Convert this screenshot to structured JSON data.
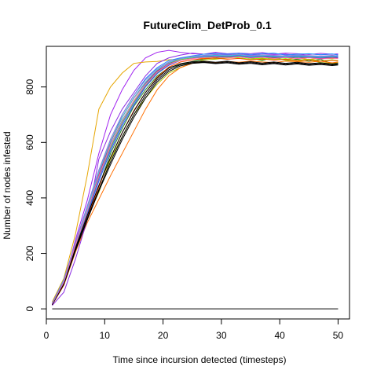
{
  "chart_data": {
    "type": "line",
    "title": "FutureClim_DetProb_0.1",
    "xlabel": "Time since incursion detected (timesteps)",
    "ylabel": "Number of nodes infested",
    "xlim": [
      0,
      51.96
    ],
    "ylim": [
      -36.4,
      946.4
    ],
    "x_ticks": [
      0,
      10,
      20,
      30,
      40,
      50
    ],
    "y_ticks": [
      0,
      200,
      400,
      600,
      800
    ],
    "grid": false,
    "legend": "none",
    "baseline": {
      "x": [
        1,
        50
      ],
      "y": [
        0,
        0
      ],
      "color": "#000000"
    },
    "series": [
      {
        "color": "#A020F0",
        "x": [
          1,
          3,
          5,
          7,
          9,
          11,
          13,
          15,
          17,
          19,
          21,
          23,
          25,
          27,
          29,
          31,
          33,
          35,
          37,
          39,
          41,
          43,
          45,
          47,
          49,
          50
        ],
        "y": [
          20,
          90,
          250,
          390,
          560,
          700,
          790,
          860,
          905,
          925,
          932,
          925,
          920,
          918,
          921,
          916,
          922,
          914,
          920,
          917,
          918,
          914,
          919,
          916,
          918,
          917
        ]
      },
      {
        "color": "#E6A500",
        "x": [
          1,
          3,
          5,
          7,
          9,
          11,
          13,
          15,
          17,
          19,
          21,
          23,
          25,
          27,
          29,
          31,
          33,
          35,
          37,
          39,
          41,
          43,
          45,
          47,
          49,
          50
        ],
        "y": [
          25,
          110,
          270,
          480,
          720,
          800,
          850,
          885,
          890,
          892,
          898,
          900,
          905,
          902,
          906,
          904,
          909,
          905,
          903,
          901,
          900,
          905,
          899,
          904,
          902,
          905
        ]
      },
      {
        "color": "#228B22",
        "x": [
          1,
          3,
          5,
          7,
          9,
          11,
          13,
          15,
          17,
          19,
          21,
          23,
          25,
          27,
          29,
          31,
          33,
          35,
          37,
          39,
          41,
          43,
          45,
          47,
          49,
          50
        ],
        "y": [
          18,
          100,
          230,
          340,
          440,
          560,
          650,
          730,
          790,
          840,
          870,
          880,
          892,
          901,
          905,
          910,
          915,
          905,
          895,
          908,
          896,
          900,
          893,
          900,
          883,
          880
        ]
      },
      {
        "color": "#B0C400",
        "x": [
          1,
          3,
          5,
          7,
          9,
          11,
          13,
          15,
          17,
          19,
          21,
          23,
          25,
          27,
          29,
          31,
          33,
          35,
          37,
          39,
          41,
          43,
          45,
          47,
          49,
          50
        ],
        "y": [
          16,
          95,
          220,
          330,
          420,
          540,
          620,
          700,
          760,
          810,
          850,
          870,
          885,
          898,
          900,
          905,
          910,
          903,
          898,
          905,
          896,
          892,
          898,
          888,
          885,
          888
        ]
      },
      {
        "color": "#FF6E00",
        "x": [
          1,
          3,
          5,
          7,
          9,
          11,
          13,
          15,
          17,
          19,
          21,
          23,
          25,
          27,
          29,
          31,
          33,
          35,
          37,
          39,
          41,
          43,
          45,
          47,
          49,
          50
        ],
        "y": [
          14,
          85,
          205,
          310,
          395,
          480,
          560,
          640,
          720,
          790,
          840,
          870,
          885,
          890,
          888,
          892,
          889,
          893,
          890,
          888,
          893,
          891,
          889,
          893,
          887,
          890
        ]
      },
      {
        "color": "#8B2BE2",
        "x": [
          1,
          3,
          5,
          7,
          9,
          11,
          13,
          15,
          17,
          19,
          21,
          23,
          25,
          27,
          29,
          31,
          33,
          35,
          37,
          39,
          41,
          43,
          45,
          47,
          49,
          50
        ],
        "y": [
          12,
          60,
          180,
          320,
          540,
          640,
          720,
          780,
          840,
          885,
          905,
          915,
          922,
          918,
          925,
          920,
          922,
          920,
          924,
          918,
          922,
          920,
          917,
          921,
          918,
          919
        ]
      },
      {
        "color": "#1E90FF",
        "x": [
          1,
          3,
          5,
          7,
          9,
          11,
          13,
          15,
          17,
          19,
          21,
          23,
          25,
          27,
          29,
          31,
          33,
          35,
          37,
          39,
          41,
          43,
          45,
          47,
          49,
          50
        ],
        "y": [
          20,
          105,
          240,
          370,
          500,
          600,
          700,
          770,
          830,
          870,
          895,
          905,
          912,
          918,
          920,
          918,
          921,
          917,
          920,
          922,
          915,
          918,
          920,
          916,
          919,
          915
        ]
      },
      {
        "color": "#00CED1",
        "x": [
          1,
          3,
          5,
          7,
          9,
          11,
          13,
          15,
          17,
          19,
          21,
          23,
          25,
          27,
          29,
          31,
          33,
          35,
          37,
          39,
          41,
          43,
          45,
          47,
          49,
          50
        ],
        "y": [
          19,
          100,
          235,
          350,
          480,
          590,
          680,
          750,
          810,
          860,
          890,
          902,
          908,
          911,
          914,
          912,
          915,
          910,
          913,
          911,
          909,
          912,
          910,
          908,
          911,
          910
        ]
      },
      {
        "color": "#FF1493",
        "x": [
          1,
          3,
          5,
          7,
          9,
          11,
          13,
          15,
          17,
          19,
          21,
          23,
          25,
          27,
          29,
          31,
          33,
          35,
          37,
          39,
          41,
          43,
          45,
          47,
          49,
          50
        ],
        "y": [
          17,
          95,
          225,
          345,
          470,
          580,
          670,
          745,
          805,
          850,
          880,
          896,
          904,
          910,
          908,
          912,
          910,
          907,
          911,
          909,
          906,
          910,
          907,
          909,
          906,
          908
        ]
      },
      {
        "color": "#00B060",
        "x": [
          1,
          3,
          5,
          7,
          9,
          11,
          13,
          15,
          17,
          19,
          21,
          23,
          25,
          27,
          29,
          31,
          33,
          35,
          37,
          39,
          41,
          43,
          45,
          47,
          49,
          50
        ],
        "y": [
          18,
          98,
          230,
          350,
          475,
          585,
          675,
          748,
          808,
          855,
          885,
          900,
          906,
          908,
          910,
          907,
          911,
          906,
          909,
          905,
          908,
          904,
          907,
          903,
          906,
          905
        ]
      },
      {
        "color": "#2F4FFF",
        "x": [
          1,
          3,
          5,
          7,
          9,
          11,
          13,
          15,
          17,
          19,
          21,
          23,
          25,
          27,
          29,
          31,
          33,
          35,
          37,
          39,
          41,
          43,
          45,
          47,
          49,
          50
        ],
        "y": [
          16,
          90,
          220,
          340,
          460,
          570,
          660,
          735,
          800,
          848,
          878,
          896,
          905,
          910,
          913,
          910,
          914,
          909,
          912,
          910,
          908,
          911,
          909,
          907,
          910,
          908
        ]
      },
      {
        "color": "#C71585",
        "x": [
          1,
          3,
          5,
          7,
          9,
          11,
          13,
          15,
          17,
          19,
          21,
          23,
          25,
          27,
          29,
          31,
          33,
          35,
          37,
          39,
          41,
          43,
          45,
          47,
          49,
          50
        ],
        "y": [
          17,
          92,
          228,
          352,
          485,
          600,
          690,
          760,
          815,
          858,
          884,
          898,
          905,
          907,
          909,
          906,
          910,
          905,
          908,
          904,
          907,
          903,
          906,
          902,
          905,
          904
        ]
      },
      {
        "color": "#40E0D0",
        "x": [
          1,
          3,
          5,
          7,
          9,
          11,
          13,
          15,
          17,
          19,
          21,
          23,
          25,
          27,
          29,
          31,
          33,
          35,
          37,
          39,
          41,
          43,
          45,
          47,
          49,
          50
        ],
        "y": [
          19,
          102,
          238,
          360,
          492,
          605,
          692,
          762,
          818,
          862,
          888,
          901,
          907,
          912,
          915,
          913,
          916,
          911,
          914,
          912,
          910,
          913,
          911,
          909,
          912,
          911
        ]
      },
      {
        "color": "#7FFF00",
        "x": [
          1,
          3,
          5,
          7,
          9,
          11,
          13,
          15,
          17,
          19,
          21,
          23,
          25,
          27,
          29,
          31,
          33,
          35,
          37,
          39,
          41,
          43,
          45,
          47,
          49,
          50
        ],
        "y": [
          18,
          97,
          232,
          348,
          472,
          582,
          672,
          745,
          805,
          852,
          882,
          898,
          904,
          906,
          902,
          908,
          905,
          900,
          904,
          898,
          902,
          896,
          900,
          894,
          898,
          895
        ]
      },
      {
        "color": "#FF4500",
        "x": [
          1,
          3,
          5,
          7,
          9,
          11,
          13,
          15,
          17,
          19,
          21,
          23,
          25,
          27,
          29,
          31,
          33,
          35,
          37,
          39,
          41,
          43,
          45,
          47,
          49,
          50
        ],
        "y": [
          15,
          88,
          212,
          328,
          440,
          545,
          635,
          715,
          780,
          835,
          872,
          890,
          898,
          902,
          904,
          900,
          903,
          898,
          901,
          897,
          900,
          895,
          898,
          893,
          896,
          894
        ]
      },
      {
        "color": "#4682B4",
        "x": [
          1,
          3,
          5,
          7,
          9,
          11,
          13,
          15,
          17,
          19,
          21,
          23,
          25,
          27,
          29,
          31,
          33,
          35,
          37,
          39,
          41,
          43,
          45,
          47,
          49,
          50
        ],
        "y": [
          17,
          94,
          226,
          346,
          470,
          578,
          668,
          742,
          803,
          850,
          880,
          896,
          903,
          908,
          911,
          909,
          912,
          907,
          910,
          908,
          906,
          909,
          907,
          905,
          908,
          906
        ]
      },
      {
        "color": "#000000",
        "x": [
          1,
          3,
          5,
          7,
          9,
          11,
          13,
          15,
          17,
          19,
          21,
          23,
          25,
          27,
          29,
          31,
          33,
          35,
          37,
          39,
          41,
          43,
          45,
          47,
          49,
          50
        ],
        "y": [
          16,
          90,
          215,
          325,
          430,
          530,
          620,
          700,
          770,
          825,
          862,
          880,
          888,
          890,
          886,
          890,
          884,
          888,
          883,
          887,
          882,
          886,
          881,
          884,
          880,
          882
        ]
      },
      {
        "color": "#000000",
        "x": [
          1,
          3,
          5,
          7,
          9,
          11,
          13,
          15,
          17,
          19,
          21,
          23,
          25,
          27,
          29,
          31,
          33,
          35,
          37,
          39,
          41,
          43,
          45,
          47,
          49,
          50
        ],
        "y": [
          15,
          88,
          210,
          320,
          425,
          520,
          610,
          690,
          760,
          818,
          856,
          876,
          885,
          888,
          884,
          887,
          882,
          885,
          880,
          884,
          879,
          883,
          878,
          881,
          877,
          879
        ]
      },
      {
        "color": "#000000",
        "x": [
          1,
          3,
          5,
          7,
          9,
          11,
          13,
          15,
          17,
          19,
          21,
          23,
          25,
          27,
          29,
          31,
          33,
          35,
          37,
          39,
          41,
          43,
          45,
          47,
          49,
          50
        ],
        "y": [
          17,
          92,
          220,
          335,
          445,
          545,
          635,
          712,
          780,
          832,
          868,
          884,
          891,
          893,
          889,
          893,
          887,
          891,
          886,
          890,
          885,
          889,
          884,
          887,
          883,
          885
        ]
      },
      {
        "color": "#FF69B4",
        "x": [
          1,
          3,
          5,
          7,
          9,
          11,
          13,
          15,
          17,
          19,
          21,
          23,
          25,
          27,
          29,
          31,
          33,
          35,
          37,
          39,
          41,
          43,
          45,
          47,
          49,
          50
        ],
        "y": [
          18,
          96,
          230,
          352,
          478,
          588,
          676,
          750,
          808,
          854,
          882,
          896,
          902,
          906,
          908,
          905,
          909,
          904,
          907,
          903,
          906,
          902,
          905,
          901,
          904,
          902
        ]
      },
      {
        "color": "#9370DB",
        "x": [
          1,
          3,
          5,
          7,
          9,
          11,
          13,
          15,
          17,
          19,
          21,
          23,
          25,
          27,
          29,
          31,
          33,
          35,
          37,
          39,
          41,
          43,
          45,
          47,
          49,
          50
        ],
        "y": [
          19,
          101,
          240,
          368,
          500,
          612,
          700,
          770,
          825,
          866,
          890,
          903,
          910,
          914,
          917,
          915,
          918,
          913,
          916,
          914,
          912,
          915,
          913,
          911,
          914,
          912
        ]
      }
    ]
  }
}
